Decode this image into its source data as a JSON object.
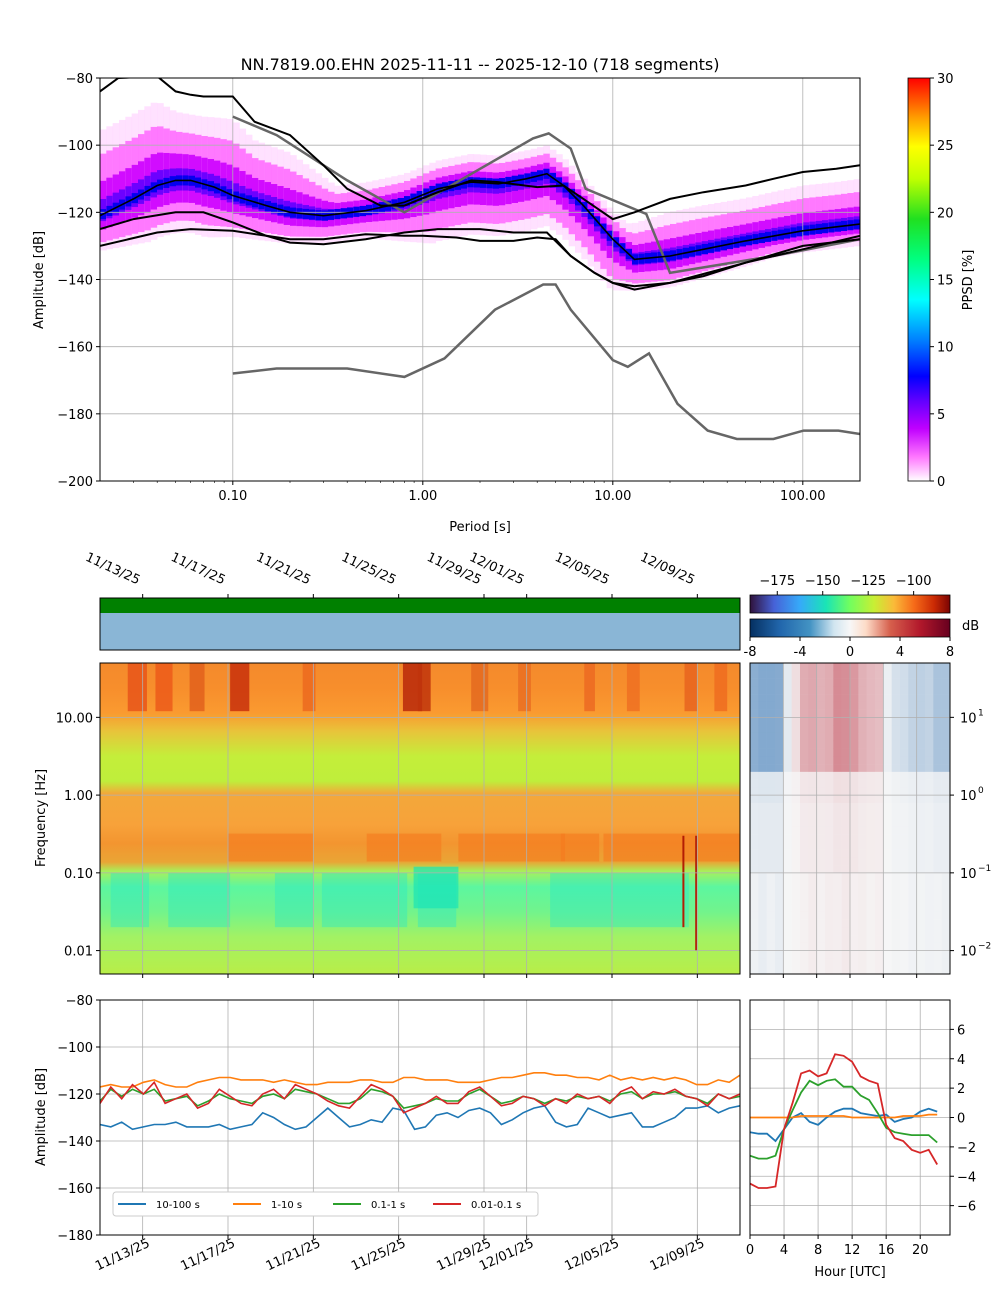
{
  "title": "NN.7819.00.EHN   2025-11-11 -- 2025-12-10  (718 segments)",
  "colors": {
    "noise_model": "#666666",
    "percentile": "#000000",
    "availability_top": "#008000",
    "availability_bottom": "#8ab6d6",
    "band_10_100": "#1f77b4",
    "band_1_10": "#ff7f0e",
    "band_01_1": "#2ca02c",
    "band_001_01": "#d62728"
  },
  "chart_data": [
    {
      "id": "ppsd",
      "type": "heatmap",
      "xlabel": "Period [s]",
      "ylabel": "Amplitude [dB]",
      "x_scale": "log",
      "xlim": [
        0.02,
        200
      ],
      "ylim": [
        -200,
        -80
      ],
      "x_ticks": [
        0.1,
        1,
        10,
        100
      ],
      "x_tick_labels": [
        "0.10",
        "1.00",
        "10.00",
        "100.00"
      ],
      "y_ticks": [
        -200,
        -180,
        -160,
        -140,
        -120,
        -100,
        -80
      ],
      "y_tick_labels": [
        "−200",
        "−180",
        "−160",
        "−140",
        "−120",
        "−100",
        "−80"
      ],
      "grid": true,
      "colorbar": {
        "label": "PPSD [%]",
        "range": [
          0,
          30
        ],
        "ticks": [
          0,
          5,
          10,
          15,
          20,
          25,
          30
        ],
        "tick_labels": [
          "0",
          "5",
          "10",
          "15",
          "20",
          "25",
          "30"
        ]
      },
      "mode_curve": [
        [
          0.02,
          -121
        ],
        [
          0.03,
          -116
        ],
        [
          0.04,
          -112
        ],
        [
          0.05,
          -110.5
        ],
        [
          0.06,
          -110.5
        ],
        [
          0.08,
          -112.5
        ],
        [
          0.1,
          -115
        ],
        [
          0.15,
          -118
        ],
        [
          0.2,
          -120
        ],
        [
          0.3,
          -121
        ],
        [
          0.5,
          -119.5
        ],
        [
          0.8,
          -117
        ],
        [
          1.2,
          -113
        ],
        [
          1.8,
          -111
        ],
        [
          2.5,
          -111.5
        ],
        [
          3.5,
          -110
        ],
        [
          4.5,
          -108.5
        ],
        [
          5.5,
          -112
        ],
        [
          7,
          -118
        ],
        [
          10,
          -128
        ],
        [
          13,
          -134
        ],
        [
          20,
          -133
        ],
        [
          30,
          -131
        ],
        [
          50,
          -128.5
        ],
        [
          100,
          -125.5
        ],
        [
          200,
          -123.5
        ]
      ],
      "percentile_curves": [
        [
          [
            0.02,
            -84
          ],
          [
            0.025,
            -80
          ],
          [
            0.04,
            -79.5
          ],
          [
            0.05,
            -84
          ],
          [
            0.06,
            -85
          ],
          [
            0.07,
            -85.5
          ],
          [
            0.1,
            -85.5
          ],
          [
            0.13,
            -93
          ],
          [
            0.2,
            -97
          ],
          [
            0.3,
            -106
          ],
          [
            0.4,
            -113
          ],
          [
            0.6,
            -118
          ],
          [
            0.8,
            -118
          ],
          [
            1.2,
            -114
          ],
          [
            1.8,
            -110.5
          ],
          [
            2.5,
            -111
          ],
          [
            4,
            -112.5
          ],
          [
            5.5,
            -112
          ],
          [
            7,
            -116
          ],
          [
            10,
            -122
          ],
          [
            13,
            -120
          ],
          [
            20,
            -116
          ],
          [
            30,
            -114
          ],
          [
            50,
            -112
          ],
          [
            70,
            -110
          ],
          [
            100,
            -108
          ],
          [
            150,
            -107
          ],
          [
            200,
            -106
          ]
        ],
        [
          [
            0.02,
            -125
          ],
          [
            0.03,
            -122
          ],
          [
            0.05,
            -120
          ],
          [
            0.07,
            -120
          ],
          [
            0.1,
            -123
          ],
          [
            0.15,
            -127
          ],
          [
            0.2,
            -129
          ],
          [
            0.3,
            -129.5
          ],
          [
            0.5,
            -128
          ],
          [
            0.8,
            -126
          ],
          [
            1.2,
            -125
          ],
          [
            2,
            -125
          ],
          [
            3,
            -126
          ],
          [
            4.5,
            -126
          ],
          [
            6,
            -133
          ],
          [
            8,
            -138
          ],
          [
            10,
            -141
          ],
          [
            13,
            -143
          ],
          [
            20,
            -141
          ],
          [
            30,
            -139
          ],
          [
            50,
            -135
          ],
          [
            100,
            -131
          ],
          [
            200,
            -127
          ]
        ],
        [
          [
            0.02,
            -130
          ],
          [
            0.04,
            -126
          ],
          [
            0.06,
            -125
          ],
          [
            0.1,
            -125.5
          ],
          [
            0.15,
            -127
          ],
          [
            0.2,
            -128
          ],
          [
            0.3,
            -128
          ],
          [
            0.5,
            -126.5
          ],
          [
            0.8,
            -127
          ],
          [
            1,
            -127
          ],
          [
            1.5,
            -127.5
          ],
          [
            2,
            -128.5
          ],
          [
            3,
            -128.5
          ],
          [
            4,
            -127.5
          ],
          [
            5,
            -128
          ],
          [
            6,
            -133
          ],
          [
            8,
            -138
          ],
          [
            10,
            -141
          ],
          [
            13,
            -142
          ],
          [
            20,
            -141
          ],
          [
            50,
            -135
          ],
          [
            100,
            -130
          ],
          [
            200,
            -128
          ]
        ]
      ],
      "noise_model_high": [
        [
          0.1,
          -91.5
        ],
        [
          0.17,
          -97
        ],
        [
          0.4,
          -110.5
        ],
        [
          0.8,
          -120
        ],
        [
          3.8,
          -98
        ],
        [
          4.6,
          -96.5
        ],
        [
          6,
          -101
        ],
        [
          7.2,
          -113
        ],
        [
          15,
          -120.5
        ],
        [
          20,
          -138
        ],
        [
          70,
          -133
        ],
        [
          200,
          -128
        ]
      ],
      "noise_model_low": [
        [
          0.1,
          -168
        ],
        [
          0.17,
          -166.5
        ],
        [
          0.4,
          -166.5
        ],
        [
          0.8,
          -169
        ],
        [
          1.3,
          -163.5
        ],
        [
          2.4,
          -149
        ],
        [
          4.3,
          -141.5
        ],
        [
          5,
          -141.5
        ],
        [
          6,
          -149
        ],
        [
          10,
          -164
        ],
        [
          12,
          -166
        ],
        [
          15.5,
          -162
        ],
        [
          21.9,
          -177
        ],
        [
          31.6,
          -185
        ],
        [
          45,
          -187.5
        ],
        [
          70,
          -187.5
        ],
        [
          101,
          -185
        ],
        [
          154,
          -185
        ],
        [
          200,
          -186
        ]
      ]
    },
    {
      "id": "spectrogram",
      "type": "heatmap",
      "ylabel": "Frequency [Hz]",
      "y_scale": "log",
      "ylim": [
        0.005,
        50
      ],
      "y_ticks": [
        0.01,
        0.1,
        1,
        10
      ],
      "y_tick_labels": [
        "0.01",
        "0.10",
        "1.00",
        "10.00"
      ],
      "x_tick_labels": [
        "11/13/25",
        "11/17/25",
        "11/21/25",
        "11/25/25",
        "11/29/25",
        "12/01/25",
        "12/05/25",
        "12/09/25"
      ],
      "x_tick_days": [
        2,
        6,
        10,
        14,
        18,
        20,
        24,
        28
      ],
      "x_range_days": [
        0,
        30
      ],
      "colorbar": {
        "range": [
          -190,
          -80
        ],
        "ticks": [
          -175,
          -150,
          -125,
          -100
        ],
        "tick_labels": [
          "−175",
          "−150",
          "−125",
          "−100"
        ]
      }
    },
    {
      "id": "diurnal",
      "type": "heatmap",
      "y_scale": "log",
      "ylim": [
        0.005,
        50
      ],
      "y_tick_labels": [
        "10",
        "10",
        "10",
        "10"
      ],
      "y_tick_exponents": [
        "1",
        "0",
        "−1",
        "−2"
      ],
      "colorbar": {
        "label": "dB",
        "range": [
          -8,
          8
        ],
        "ticks": [
          -8,
          -4,
          0,
          4,
          8
        ],
        "tick_labels": [
          "-8",
          "-4",
          "0",
          "4",
          "8"
        ]
      }
    },
    {
      "id": "band_timeseries",
      "type": "line",
      "ylabel": "Amplitude [dB]",
      "ylim": [
        -180,
        -80
      ],
      "y_ticks": [
        -180,
        -160,
        -140,
        -120,
        -100,
        -80
      ],
      "y_tick_labels": [
        "−180",
        "−160",
        "−140",
        "−120",
        "−100",
        "−80"
      ],
      "x_tick_labels": [
        "11/13/25",
        "11/17/25",
        "11/21/25",
        "11/25/25",
        "11/29/25",
        "12/01/25",
        "12/05/25",
        "12/09/25"
      ],
      "x_tick_days": [
        2,
        6,
        10,
        14,
        18,
        20,
        24,
        28
      ],
      "x_range_days": [
        0,
        30
      ],
      "legend": "lower-left",
      "series": [
        {
          "name": "10-100 s",
          "base": -134,
          "points": [
            -133,
            -134,
            -132,
            -135,
            -134,
            -133,
            -133,
            -132,
            -134,
            -134,
            -134,
            -133,
            -135,
            -134,
            -133,
            -128,
            -130,
            -133,
            -135,
            -134,
            -130,
            -126,
            -130,
            -134,
            -133,
            -131,
            -132,
            -126,
            -127,
            -135,
            -134,
            -129,
            -128,
            -130,
            -127,
            -126,
            -128,
            -133,
            -131,
            -128,
            -126,
            -125,
            -132,
            -134,
            -133,
            -126,
            -128,
            -130,
            -129,
            -128,
            -134,
            -134,
            -132,
            -130,
            -126,
            -126,
            -125,
            -128,
            -126,
            -125
          ]
        },
        {
          "name": "1-10 s",
          "base": -117,
          "points": [
            -117,
            -116,
            -117,
            -117,
            -115,
            -114,
            -116,
            -117,
            -117,
            -115,
            -114,
            -113,
            -113,
            -114,
            -114,
            -114,
            -115,
            -114,
            -115,
            -116,
            -116,
            -115,
            -115,
            -115,
            -114,
            -114,
            -115,
            -115,
            -113,
            -113,
            -114,
            -114,
            -114,
            -115,
            -115,
            -115,
            -114,
            -113,
            -113,
            -112,
            -111,
            -111,
            -112,
            -112,
            -113,
            -113,
            -114,
            -112,
            -114,
            -113,
            -114,
            -113,
            -114,
            -113,
            -114,
            -116,
            -116,
            -114,
            -115,
            -112
          ]
        },
        {
          "name": "0.1-1 s",
          "base": -122,
          "points": [
            -123,
            -118,
            -121,
            -118,
            -120,
            -118,
            -123,
            -122,
            -121,
            -125,
            -123,
            -120,
            -122,
            -123,
            -124,
            -121,
            -120,
            -122,
            -118,
            -119,
            -120,
            -122,
            -124,
            -124,
            -122,
            -118,
            -119,
            -121,
            -126,
            -125,
            -124,
            -122,
            -123,
            -123,
            -120,
            -118,
            -121,
            -124,
            -123,
            -121,
            -122,
            -124,
            -122,
            -123,
            -121,
            -122,
            -121,
            -123,
            -120,
            -119,
            -122,
            -120,
            -120,
            -119,
            -121,
            -122,
            -124,
            -120,
            -122,
            -121
          ]
        },
        {
          "name": "0.01-0.1 s",
          "base": -122,
          "points": [
            -124,
            -117,
            -122,
            -116,
            -120,
            -115,
            -124,
            -122,
            -120,
            -126,
            -124,
            -118,
            -121,
            -124,
            -125,
            -120,
            -118,
            -122,
            -116,
            -118,
            -120,
            -123,
            -125,
            -126,
            -121,
            -116,
            -118,
            -121,
            -128,
            -126,
            -124,
            -121,
            -124,
            -124,
            -119,
            -117,
            -121,
            -125,
            -124,
            -121,
            -122,
            -125,
            -122,
            -124,
            -120,
            -122,
            -121,
            -124,
            -119,
            -117,
            -122,
            -119,
            -120,
            -118,
            -121,
            -122,
            -125,
            -120,
            -122,
            -120
          ]
        }
      ]
    },
    {
      "id": "diurnal_bands",
      "type": "line",
      "xlabel": "Hour [UTC]",
      "xlim": [
        0,
        23.5
      ],
      "ylim": [
        -8,
        8
      ],
      "x_ticks": [
        0,
        4,
        8,
        12,
        16,
        20
      ],
      "x_tick_labels": [
        "0",
        "4",
        "8",
        "12",
        "16",
        "20"
      ],
      "y_ticks": [
        -6,
        -4,
        -2,
        0,
        2,
        4,
        6
      ],
      "y_tick_labels": [
        "−6",
        "−4",
        "−2",
        "0",
        "2",
        "4",
        "6"
      ],
      "x": [
        0,
        1,
        2,
        3,
        4,
        5,
        6,
        7,
        8,
        9,
        10,
        11,
        12,
        13,
        14,
        15,
        16,
        17,
        18,
        19,
        20,
        21,
        22
      ],
      "series": [
        {
          "name": "10-100 s",
          "values": [
            -1.0,
            -1.1,
            -1.1,
            -1.6,
            -0.8,
            0.0,
            0.3,
            -0.3,
            -0.5,
            0.0,
            0.4,
            0.6,
            0.6,
            0.3,
            0.2,
            0.1,
            0.2,
            -0.3,
            -0.1,
            0.0,
            0.4,
            0.6,
            0.4
          ]
        },
        {
          "name": "1-10 s",
          "values": [
            0.0,
            0.0,
            0.0,
            0.0,
            0.0,
            0.0,
            0.1,
            0.1,
            0.1,
            0.1,
            0.1,
            0.1,
            0.0,
            0.0,
            0.0,
            0.0,
            0.0,
            0.0,
            0.1,
            0.1,
            0.1,
            0.2,
            0.2
          ]
        },
        {
          "name": "0.1-1 s",
          "values": [
            -2.6,
            -2.8,
            -2.8,
            -2.6,
            -0.8,
            0.5,
            1.7,
            2.5,
            2.2,
            2.5,
            2.6,
            2.1,
            2.1,
            1.5,
            1.2,
            0.3,
            -0.7,
            -1.0,
            -1.1,
            -1.2,
            -1.2,
            -1.2,
            -1.7
          ]
        },
        {
          "name": "0.01-0.1 s",
          "values": [
            -4.5,
            -4.8,
            -4.8,
            -4.7,
            -0.8,
            1.0,
            3.0,
            3.2,
            2.8,
            3.0,
            4.3,
            4.2,
            3.8,
            2.8,
            2.5,
            2.3,
            -0.5,
            -1.4,
            -1.6,
            -2.2,
            -2.4,
            -2.2,
            -3.2
          ]
        }
      ]
    }
  ]
}
